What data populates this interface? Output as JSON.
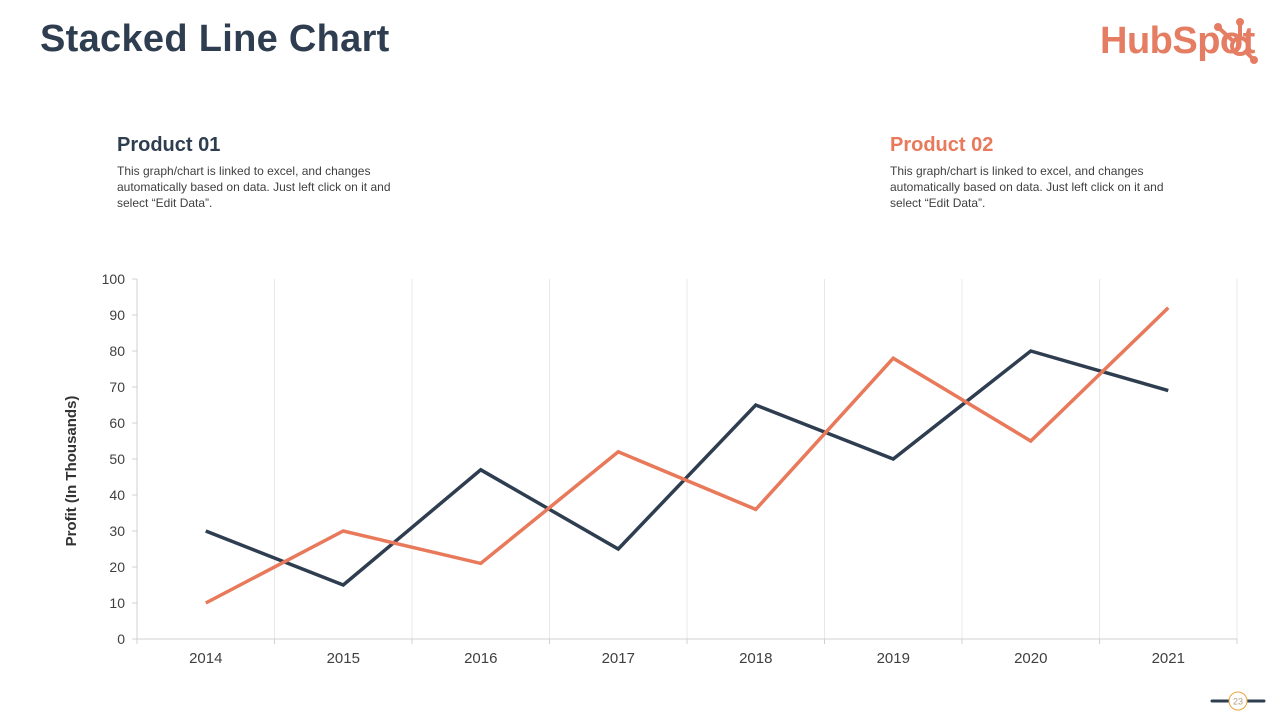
{
  "slide": {
    "title": "Stacked Line Chart",
    "page_number": "23"
  },
  "logo": {
    "text": "HubSpot",
    "icon": "sprocket-icon",
    "color": "#e47d62"
  },
  "products": [
    {
      "heading": "Product 01",
      "description": "This graph/chart is linked to excel, and changes automatically based on data. Just left click on it and select “Edit Data”.",
      "color": "#2e3e50"
    },
    {
      "heading": "Product 02",
      "description": "This graph/chart is linked to excel, and changes automatically based on data. Just left click on it and select “Edit Data”.",
      "color": "#e8795a"
    }
  ],
  "chart_data": {
    "type": "line",
    "title": "",
    "xlabel": "",
    "ylabel": "Profit (In Thousands)",
    "categories": [
      "2014",
      "2015",
      "2016",
      "2017",
      "2018",
      "2019",
      "2020",
      "2021"
    ],
    "ylim": [
      0,
      100
    ],
    "yticks": [
      0,
      10,
      20,
      30,
      40,
      50,
      60,
      70,
      80,
      90,
      100
    ],
    "grid": "vertical",
    "series": [
      {
        "name": "Product 01",
        "color": "#2e3e50",
        "values": [
          30,
          15,
          47,
          25,
          65,
          50,
          80,
          69
        ]
      },
      {
        "name": "Product 02",
        "color": "#e8795a",
        "values": [
          10,
          30,
          21,
          52,
          36,
          78,
          55,
          92
        ]
      }
    ]
  }
}
